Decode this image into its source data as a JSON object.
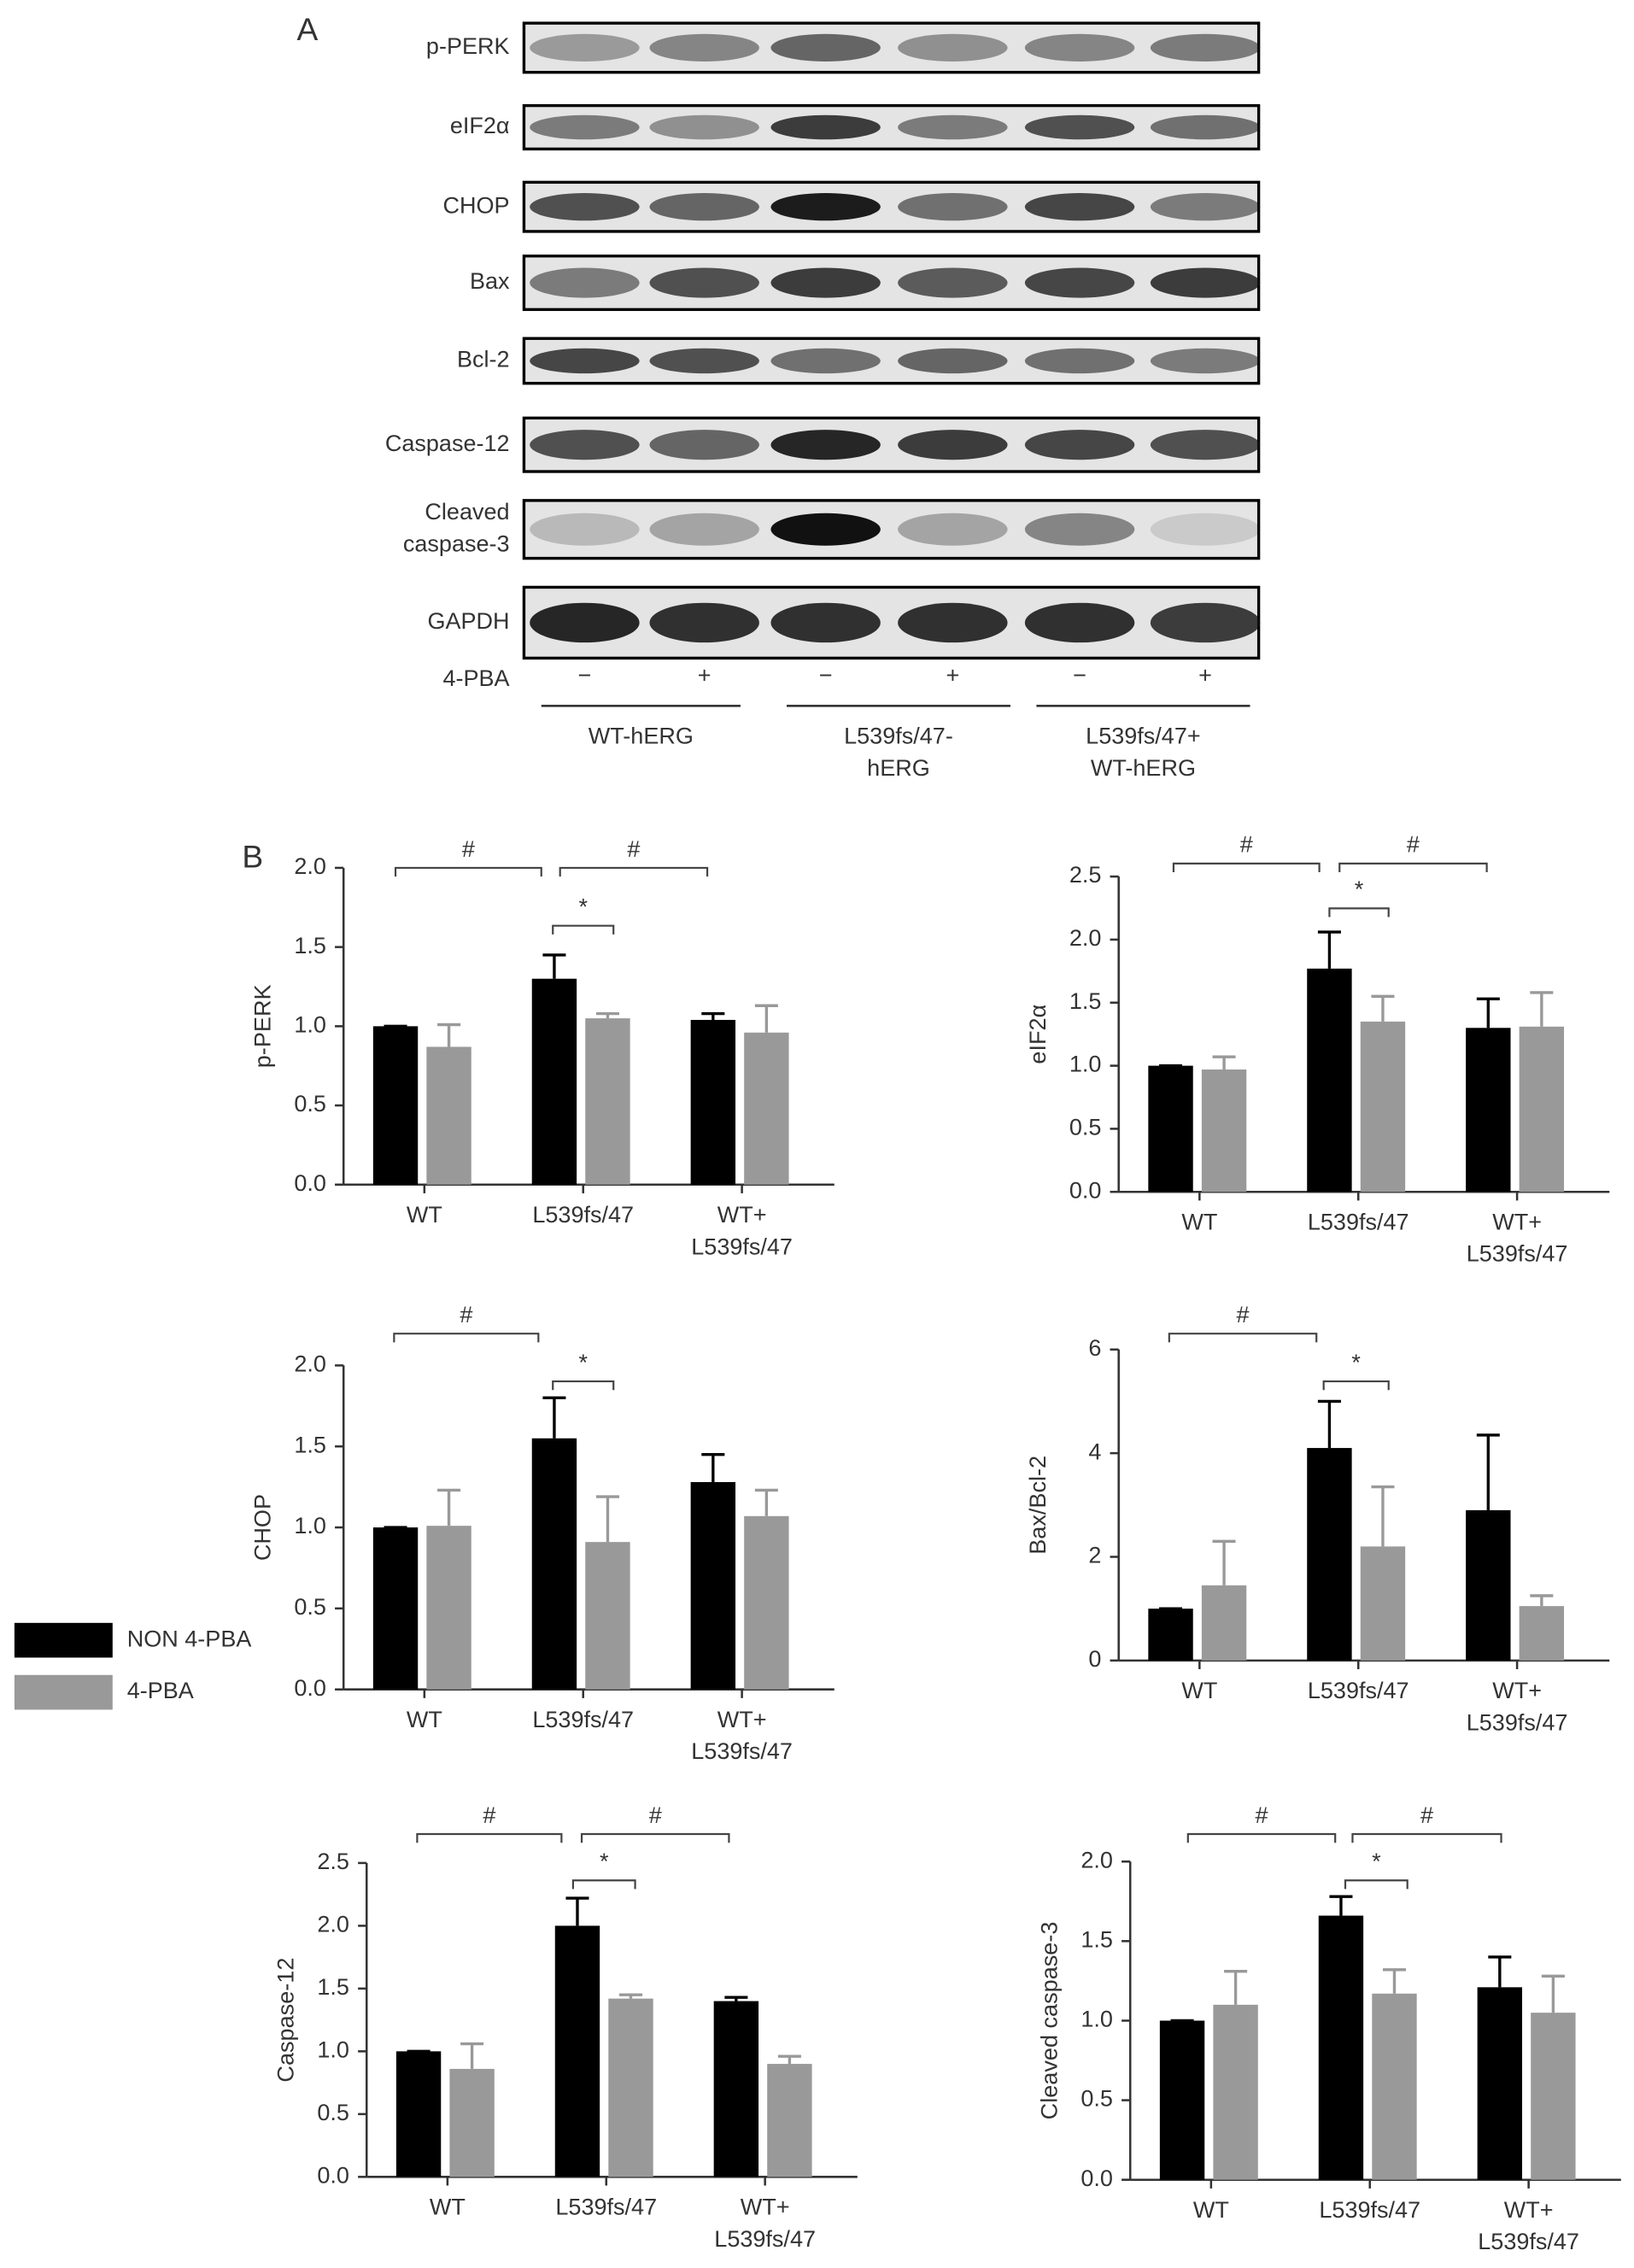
{
  "blot": {
    "panel_label": "A",
    "rows": [
      "p-PERK",
      "eIF2α",
      "CHOP",
      "Bax",
      "Bcl-2",
      "Caspase-12",
      "Cleaved\ncaspase-3",
      "GAPDH"
    ],
    "treatment_label": "4-PBA",
    "treatment": [
      "−",
      "+",
      "−",
      "+",
      "−",
      "+"
    ],
    "groups": [
      "WT-hERG",
      "L539fs/47-\nhERG",
      "L539fs/47+\nWT-hERG"
    ]
  },
  "panel_label_b": "B",
  "chart_data": [
    {
      "type": "bar",
      "ylabel": "p-PERK",
      "categories": [
        "WT",
        "L539fs/47",
        "WT+\nL539fs/47"
      ],
      "ylim": [
        0,
        2
      ],
      "yticks": [
        {
          "value": 0,
          "label": "0.0"
        },
        0.5,
        {
          "value": 1,
          "label": "1.0"
        },
        1.5,
        {
          "value": 2,
          "label": "2.0"
        }
      ],
      "series": [
        {
          "color": "#000000",
          "values": [
            1.0,
            1.3,
            1.04
          ],
          "errors": [
            0,
            0.15,
            0.04
          ]
        },
        {
          "color": "#999999",
          "values": [
            0.87,
            1.05,
            0.96
          ],
          "errors": [
            0.14,
            0.03,
            0.17
          ]
        }
      ],
      "annotations": [
        "#",
        "#",
        "*"
      ]
    },
    {
      "type": "bar",
      "ylabel": "eIF2α",
      "categories": [
        "WT",
        "L539fs/47",
        "WT+\nL539fs/47"
      ],
      "ylim": [
        0,
        2.5
      ],
      "yticks": [
        {
          "value": 0,
          "label": "0.0"
        },
        0.5,
        {
          "value": 1,
          "label": "1.0"
        },
        1.5,
        {
          "value": 2,
          "label": "2.0"
        },
        2.5
      ],
      "series": [
        {
          "color": "#000000",
          "values": [
            1.0,
            1.77,
            1.3
          ],
          "errors": [
            0,
            0.29,
            0.23
          ]
        },
        {
          "color": "#999999",
          "values": [
            0.97,
            1.35,
            1.31
          ],
          "errors": [
            0.1,
            0.2,
            0.27
          ]
        }
      ],
      "annotations": [
        "#",
        "#",
        "*"
      ]
    },
    {
      "type": "bar",
      "ylabel": "CHOP",
      "categories": [
        "WT",
        "L539fs/47",
        "WT+\nL539fs/47"
      ],
      "ylim": [
        0,
        2
      ],
      "yticks": [
        {
          "value": 0,
          "label": "0.0"
        },
        0.5,
        {
          "value": 1,
          "label": "1.0"
        },
        1.5,
        {
          "value": 2,
          "label": "2.0"
        }
      ],
      "series": [
        {
          "color": "#000000",
          "values": [
            1.0,
            1.55,
            1.28
          ],
          "errors": [
            0,
            0.25,
            0.17
          ]
        },
        {
          "color": "#999999",
          "values": [
            1.01,
            0.91,
            1.07
          ],
          "errors": [
            0.22,
            0.28,
            0.16
          ]
        }
      ],
      "annotations": [
        "#",
        "*"
      ]
    },
    {
      "type": "bar",
      "ylabel": "Bax/Bcl-2",
      "categories": [
        "WT",
        "L539fs/47",
        "WT+\nL539fs/47"
      ],
      "ylim": [
        0,
        6
      ],
      "yticks": [
        0,
        2,
        4,
        6
      ],
      "series": [
        {
          "color": "#000000",
          "values": [
            1.0,
            4.1,
            2.9
          ],
          "errors": [
            0,
            0.9,
            1.45
          ]
        },
        {
          "color": "#999999",
          "values": [
            1.45,
            2.2,
            1.05
          ],
          "errors": [
            0.85,
            1.15,
            0.2
          ]
        }
      ],
      "annotations": [
        "#",
        "*"
      ]
    },
    {
      "type": "bar",
      "ylabel": "Caspase-12",
      "categories": [
        "WT",
        "L539fs/47",
        "WT+\nL539fs/47"
      ],
      "ylim": [
        0,
        2.5
      ],
      "yticks": [
        {
          "value": 0,
          "label": "0.0"
        },
        0.5,
        {
          "value": 1,
          "label": "1.0"
        },
        1.5,
        {
          "value": 2,
          "label": "2.0"
        },
        2.5
      ],
      "series": [
        {
          "name": "NON 4-PBA",
          "color": "#000000",
          "values": [
            1.0,
            2.0,
            1.4
          ],
          "errors": [
            0,
            0.22,
            0.03
          ]
        },
        {
          "name": "4-PBA",
          "color": "#999999",
          "values": [
            0.86,
            1.42,
            0.9
          ],
          "errors": [
            0.2,
            0.03,
            0.06
          ]
        }
      ],
      "annotations": [
        "#",
        "#",
        "*"
      ]
    },
    {
      "type": "bar",
      "ylabel": "Cleaved caspase-3",
      "categories": [
        "WT",
        "L539fs/47",
        "WT+\nL539fs/47"
      ],
      "ylim": [
        0,
        2
      ],
      "yticks": [
        {
          "value": 0,
          "label": "0.0"
        },
        0.5,
        {
          "value": 1,
          "label": "1.0"
        },
        1.5,
        {
          "value": 2,
          "label": "2.0"
        }
      ],
      "series": [
        {
          "color": "#000000",
          "values": [
            1.0,
            1.66,
            1.21
          ],
          "errors": [
            0,
            0.12,
            0.19
          ]
        },
        {
          "color": "#999999",
          "values": [
            1.1,
            1.17,
            1.05
          ],
          "errors": [
            0.21,
            0.15,
            0.23
          ]
        }
      ],
      "annotations": [
        "#",
        "#",
        "*"
      ]
    }
  ]
}
